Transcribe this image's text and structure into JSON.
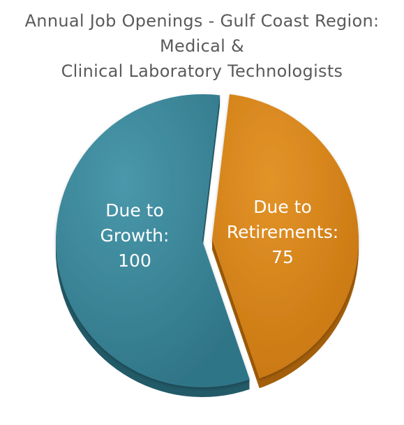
{
  "chart_data": {
    "type": "pie",
    "title_lines": [
      "Annual Job Openings - Gulf Coast Region:",
      "Medical &",
      "Clinical Laboratory Technologists"
    ],
    "slices": [
      {
        "label_lines": [
          "Due to",
          "Growth:",
          "100"
        ],
        "value": 100,
        "color": "#3a8497",
        "exploded": false
      },
      {
        "label_lines": [
          "Due to",
          "Retirements:",
          "75"
        ],
        "value": 75,
        "color": "#d9861f",
        "exploded": true
      }
    ],
    "legend": "none",
    "grid": false
  }
}
